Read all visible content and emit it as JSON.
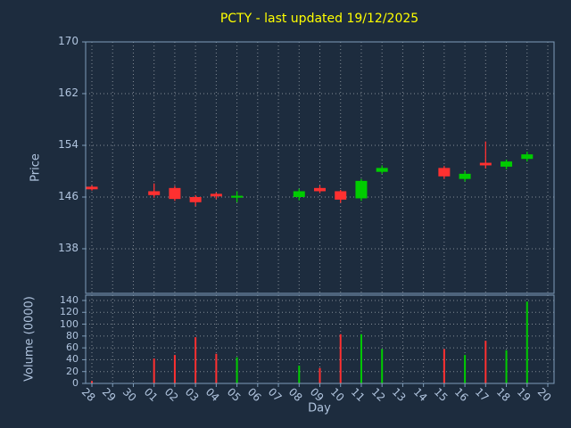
{
  "chart_data": {
    "type": "candlestick",
    "title": "PCTY - last updated 19/12/2025",
    "xlabel": "Day",
    "ylabel_price": "Price",
    "ylabel_volume": "Volume (0000)",
    "x_ticks": [
      "28",
      "29",
      "30",
      "01",
      "02",
      "03",
      "04",
      "05",
      "06",
      "07",
      "08",
      "09",
      "10",
      "11",
      "12",
      "13",
      "14",
      "15",
      "16",
      "17",
      "18",
      "19",
      "20"
    ],
    "price_ticks": [
      138,
      146,
      154,
      162,
      170
    ],
    "price_ylim": [
      131.1,
      170
    ],
    "volume_ticks": [
      0,
      20,
      40,
      60,
      80,
      100,
      120,
      140
    ],
    "volume_ylim": [
      0,
      149
    ],
    "legend": "none",
    "grid": "dotted",
    "colors": {
      "background": "#1d2c3e",
      "spine": "#7f9db9",
      "tick_label": "#b0c4de",
      "grid": "#ffffff",
      "title": "#ffff00",
      "up": "#00cc00",
      "down": "#ff3030"
    },
    "candles": [
      {
        "day": "28",
        "open": 147.6,
        "high": 147.8,
        "low": 147.0,
        "close": 147.2,
        "volume": 4
      },
      {
        "day": "01",
        "open": 146.9,
        "high": 148.1,
        "low": 145.9,
        "close": 146.3,
        "volume": 42
      },
      {
        "day": "02",
        "open": 147.4,
        "high": 147.7,
        "low": 145.4,
        "close": 145.7,
        "volume": 48
      },
      {
        "day": "03",
        "open": 146.0,
        "high": 146.3,
        "low": 144.6,
        "close": 145.2,
        "volume": 78
      },
      {
        "day": "04",
        "open": 146.5,
        "high": 146.7,
        "low": 145.7,
        "close": 146.1,
        "volume": 50
      },
      {
        "day": "05",
        "open": 145.9,
        "high": 146.9,
        "low": 145.2,
        "close": 146.2,
        "volume": 44
      },
      {
        "day": "08",
        "open": 146.0,
        "high": 147.3,
        "low": 145.5,
        "close": 146.9,
        "volume": 30
      },
      {
        "day": "09",
        "open": 147.4,
        "high": 147.8,
        "low": 146.6,
        "close": 146.9,
        "volume": 26
      },
      {
        "day": "10",
        "open": 146.9,
        "high": 147.1,
        "low": 145.1,
        "close": 145.6,
        "volume": 83
      },
      {
        "day": "11",
        "open": 145.8,
        "high": 148.8,
        "low": 145.4,
        "close": 148.5,
        "volume": 83
      },
      {
        "day": "12",
        "open": 149.9,
        "high": 150.9,
        "low": 149.6,
        "close": 150.5,
        "volume": 58
      },
      {
        "day": "15",
        "open": 150.5,
        "high": 150.8,
        "low": 148.8,
        "close": 149.2,
        "volume": 58
      },
      {
        "day": "16",
        "open": 148.8,
        "high": 150.0,
        "low": 148.4,
        "close": 149.6,
        "volume": 48
      },
      {
        "day": "17",
        "open": 151.3,
        "high": 154.6,
        "low": 150.4,
        "close": 150.9,
        "volume": 72
      },
      {
        "day": "18",
        "open": 150.7,
        "high": 151.8,
        "low": 150.3,
        "close": 151.5,
        "volume": 56
      },
      {
        "day": "19",
        "open": 151.9,
        "high": 153.0,
        "low": 151.5,
        "close": 152.6,
        "volume": 138
      }
    ]
  }
}
